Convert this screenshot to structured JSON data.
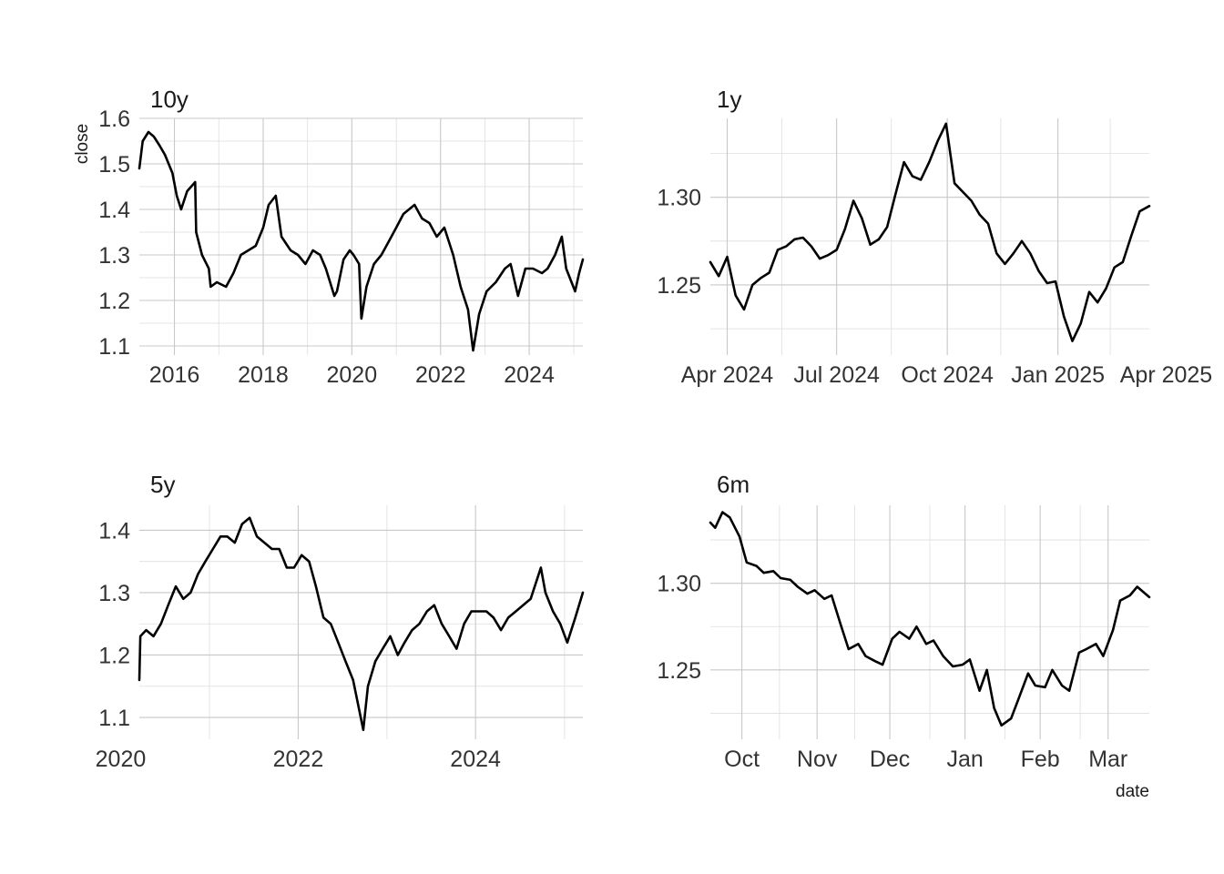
{
  "figure": {
    "ylabel": "close",
    "xlabel": "date",
    "line_color": "#000000",
    "grid_color": "#c8c8c8"
  },
  "chart_data": [
    {
      "type": "line",
      "title": "10y",
      "ylabel": "close",
      "xlabel": "",
      "xlim": [
        "2015-03-18",
        "2025-03-18"
      ],
      "ylim": [
        1.08,
        1.6
      ],
      "xticks": [
        {
          "value": "2016-01-01",
          "label": "2016"
        },
        {
          "value": "2018-01-01",
          "label": "2018"
        },
        {
          "value": "2020-01-01",
          "label": "2020"
        },
        {
          "value": "2022-01-01",
          "label": "2022"
        },
        {
          "value": "2024-01-01",
          "label": "2024"
        }
      ],
      "yticks": [
        {
          "value": 1.1,
          "label": "1.1"
        },
        {
          "value": 1.2,
          "label": "1.2"
        },
        {
          "value": 1.3,
          "label": "1.3"
        },
        {
          "value": 1.4,
          "label": "1.4"
        },
        {
          "value": 1.5,
          "label": "1.5"
        },
        {
          "value": 1.6,
          "label": "1.6"
        }
      ],
      "series": [
        {
          "x": [
            "2015-03-18",
            "2015-04-15",
            "2015-06-01",
            "2015-07-15",
            "2015-09-01",
            "2015-10-15",
            "2015-12-15",
            "2016-01-20",
            "2016-02-25",
            "2016-04-15",
            "2016-06-20",
            "2016-06-28",
            "2016-08-15",
            "2016-10-10",
            "2016-10-25",
            "2016-12-15",
            "2017-03-01",
            "2017-05-01",
            "2017-07-01",
            "2017-09-01",
            "2017-11-01",
            "2018-01-01",
            "2018-02-15",
            "2018-04-15",
            "2018-06-01",
            "2018-08-15",
            "2018-10-15",
            "2018-12-15",
            "2019-02-15",
            "2019-04-15",
            "2019-06-01",
            "2019-08-10",
            "2019-09-01",
            "2019-10-25",
            "2019-12-15",
            "2020-01-15",
            "2020-03-01",
            "2020-03-20",
            "2020-05-01",
            "2020-07-01",
            "2020-09-01",
            "2020-11-01",
            "2021-01-01",
            "2021-03-01",
            "2021-06-01",
            "2021-08-01",
            "2021-10-01",
            "2021-12-01",
            "2022-02-01",
            "2022-04-15",
            "2022-06-15",
            "2022-08-15",
            "2022-09-26",
            "2022-11-15",
            "2023-01-15",
            "2023-04-01",
            "2023-06-15",
            "2023-08-01",
            "2023-10-01",
            "2023-12-01",
            "2024-02-01",
            "2024-04-15",
            "2024-06-01",
            "2024-08-01",
            "2024-09-26",
            "2024-11-01",
            "2025-01-13",
            "2025-02-15",
            "2025-03-18"
          ],
          "y": [
            1.49,
            1.55,
            1.57,
            1.56,
            1.54,
            1.52,
            1.48,
            1.43,
            1.4,
            1.44,
            1.46,
            1.35,
            1.3,
            1.27,
            1.23,
            1.24,
            1.23,
            1.26,
            1.3,
            1.31,
            1.32,
            1.36,
            1.41,
            1.43,
            1.34,
            1.31,
            1.3,
            1.28,
            1.31,
            1.3,
            1.27,
            1.21,
            1.22,
            1.29,
            1.31,
            1.3,
            1.28,
            1.16,
            1.23,
            1.28,
            1.3,
            1.33,
            1.36,
            1.39,
            1.41,
            1.38,
            1.37,
            1.34,
            1.36,
            1.3,
            1.23,
            1.18,
            1.09,
            1.17,
            1.22,
            1.24,
            1.27,
            1.28,
            1.21,
            1.27,
            1.27,
            1.26,
            1.27,
            1.3,
            1.34,
            1.27,
            1.22,
            1.26,
            1.29
          ]
        }
      ]
    },
    {
      "type": "line",
      "title": "1y",
      "ylabel": "",
      "xlabel": "",
      "xlim": [
        "2024-03-18",
        "2025-03-18"
      ],
      "ylim": [
        1.21,
        1.345
      ],
      "xticks": [
        {
          "value": "2024-04-01",
          "label": "Apr 2024"
        },
        {
          "value": "2024-07-01",
          "label": "Jul 2024"
        },
        {
          "value": "2024-10-01",
          "label": "Oct 2024"
        },
        {
          "value": "2025-01-01",
          "label": "Jan 2025"
        },
        {
          "value": "2025-04-01",
          "label": "Apr 2025"
        }
      ],
      "yticks": [
        {
          "value": 1.25,
          "label": "1.25"
        },
        {
          "value": 1.3,
          "label": "1.30"
        }
      ],
      "series": [
        {
          "x": [
            "2024-03-18",
            "2024-03-25",
            "2024-04-01",
            "2024-04-08",
            "2024-04-15",
            "2024-04-22",
            "2024-04-29",
            "2024-05-06",
            "2024-05-13",
            "2024-05-20",
            "2024-05-27",
            "2024-06-03",
            "2024-06-10",
            "2024-06-17",
            "2024-06-24",
            "2024-07-01",
            "2024-07-08",
            "2024-07-15",
            "2024-07-22",
            "2024-07-29",
            "2024-08-05",
            "2024-08-12",
            "2024-08-19",
            "2024-08-26",
            "2024-09-02",
            "2024-09-09",
            "2024-09-16",
            "2024-09-23",
            "2024-09-30",
            "2024-10-07",
            "2024-10-14",
            "2024-10-21",
            "2024-10-28",
            "2024-11-04",
            "2024-11-11",
            "2024-11-18",
            "2024-11-25",
            "2024-12-02",
            "2024-12-09",
            "2024-12-16",
            "2024-12-23",
            "2024-12-30",
            "2025-01-06",
            "2025-01-13",
            "2025-01-20",
            "2025-01-27",
            "2025-02-03",
            "2025-02-10",
            "2025-02-17",
            "2025-02-24",
            "2025-03-03",
            "2025-03-10",
            "2025-03-18"
          ],
          "y": [
            1.263,
            1.255,
            1.266,
            1.244,
            1.236,
            1.25,
            1.254,
            1.257,
            1.27,
            1.272,
            1.276,
            1.277,
            1.272,
            1.265,
            1.267,
            1.27,
            1.282,
            1.298,
            1.288,
            1.273,
            1.276,
            1.283,
            1.302,
            1.32,
            1.312,
            1.31,
            1.32,
            1.332,
            1.342,
            1.308,
            1.303,
            1.298,
            1.29,
            1.285,
            1.268,
            1.262,
            1.268,
            1.275,
            1.268,
            1.258,
            1.251,
            1.252,
            1.232,
            1.218,
            1.228,
            1.246,
            1.24,
            1.248,
            1.26,
            1.263,
            1.278,
            1.292,
            1.295
          ]
        }
      ]
    },
    {
      "type": "line",
      "title": "5y",
      "ylabel": "",
      "xlabel": "",
      "xlim": [
        "2020-03-18",
        "2025-03-18"
      ],
      "ylim": [
        1.065,
        1.44
      ],
      "xticks": [
        {
          "value": "2020-01-01",
          "label": "2020"
        },
        {
          "value": "2022-01-01",
          "label": "2022"
        },
        {
          "value": "2024-01-01",
          "label": "2024"
        }
      ],
      "yticks": [
        {
          "value": 1.1,
          "label": "1.1"
        },
        {
          "value": 1.2,
          "label": "1.2"
        },
        {
          "value": 1.3,
          "label": "1.3"
        },
        {
          "value": 1.4,
          "label": "1.4"
        }
      ],
      "series": [
        {
          "x": [
            "2020-03-18",
            "2020-03-22",
            "2020-04-15",
            "2020-05-15",
            "2020-06-15",
            "2020-07-15",
            "2020-08-15",
            "2020-09-15",
            "2020-10-15",
            "2020-11-15",
            "2020-12-15",
            "2021-01-15",
            "2021-02-15",
            "2021-03-15",
            "2021-04-15",
            "2021-05-15",
            "2021-06-15",
            "2021-07-15",
            "2021-08-15",
            "2021-09-15",
            "2021-10-15",
            "2021-11-15",
            "2021-12-15",
            "2022-01-15",
            "2022-02-15",
            "2022-03-15",
            "2022-04-15",
            "2022-05-15",
            "2022-06-15",
            "2022-07-15",
            "2022-08-15",
            "2022-09-26",
            "2022-10-15",
            "2022-11-15",
            "2022-12-15",
            "2023-01-15",
            "2023-02-15",
            "2023-03-15",
            "2023-04-15",
            "2023-05-15",
            "2023-06-15",
            "2023-07-15",
            "2023-08-15",
            "2023-09-15",
            "2023-10-15",
            "2023-11-15",
            "2023-12-15",
            "2024-01-15",
            "2024-02-15",
            "2024-03-15",
            "2024-04-15",
            "2024-05-15",
            "2024-06-15",
            "2024-07-15",
            "2024-08-15",
            "2024-09-26",
            "2024-10-15",
            "2024-11-15",
            "2024-12-15",
            "2025-01-13",
            "2025-02-15",
            "2025-03-18"
          ],
          "y": [
            1.16,
            1.23,
            1.24,
            1.23,
            1.25,
            1.28,
            1.31,
            1.29,
            1.3,
            1.33,
            1.35,
            1.37,
            1.39,
            1.39,
            1.38,
            1.41,
            1.42,
            1.39,
            1.38,
            1.37,
            1.37,
            1.34,
            1.34,
            1.36,
            1.35,
            1.31,
            1.26,
            1.25,
            1.22,
            1.19,
            1.16,
            1.08,
            1.15,
            1.19,
            1.21,
            1.23,
            1.2,
            1.22,
            1.24,
            1.25,
            1.27,
            1.28,
            1.25,
            1.23,
            1.21,
            1.25,
            1.27,
            1.27,
            1.27,
            1.26,
            1.24,
            1.26,
            1.27,
            1.28,
            1.29,
            1.34,
            1.3,
            1.27,
            1.25,
            1.22,
            1.26,
            1.3
          ]
        }
      ]
    },
    {
      "type": "line",
      "title": "6m",
      "ylabel": "",
      "xlabel": "date",
      "xlim": [
        "2024-09-18",
        "2025-03-18"
      ],
      "ylim": [
        1.21,
        1.345
      ],
      "xticks": [
        {
          "value": "2024-10-01",
          "label": "Oct"
        },
        {
          "value": "2024-11-01",
          "label": "Nov"
        },
        {
          "value": "2024-12-01",
          "label": "Dec"
        },
        {
          "value": "2025-01-01",
          "label": "Jan"
        },
        {
          "value": "2025-02-01",
          "label": "Feb"
        },
        {
          "value": "2025-03-01",
          "label": "Mar"
        }
      ],
      "yticks": [
        {
          "value": 1.25,
          "label": "1.25"
        },
        {
          "value": 1.3,
          "label": "1.30"
        }
      ],
      "series": [
        {
          "x": [
            "2024-09-18",
            "2024-09-20",
            "2024-09-23",
            "2024-09-26",
            "2024-09-30",
            "2024-10-03",
            "2024-10-07",
            "2024-10-10",
            "2024-10-14",
            "2024-10-17",
            "2024-10-21",
            "2024-10-24",
            "2024-10-28",
            "2024-10-31",
            "2024-11-04",
            "2024-11-07",
            "2024-11-11",
            "2024-11-14",
            "2024-11-18",
            "2024-11-21",
            "2024-11-25",
            "2024-11-28",
            "2024-12-02",
            "2024-12-05",
            "2024-12-09",
            "2024-12-12",
            "2024-12-16",
            "2024-12-19",
            "2024-12-23",
            "2024-12-27",
            "2024-12-31",
            "2025-01-03",
            "2025-01-07",
            "2025-01-10",
            "2025-01-13",
            "2025-01-16",
            "2025-01-20",
            "2025-01-23",
            "2025-01-27",
            "2025-01-30",
            "2025-02-03",
            "2025-02-06",
            "2025-02-10",
            "2025-02-13",
            "2025-02-17",
            "2025-02-20",
            "2025-02-24",
            "2025-02-27",
            "2025-03-03",
            "2025-03-06",
            "2025-03-10",
            "2025-03-13",
            "2025-03-18"
          ],
          "y": [
            1.335,
            1.332,
            1.341,
            1.338,
            1.327,
            1.312,
            1.31,
            1.306,
            1.307,
            1.303,
            1.302,
            1.298,
            1.294,
            1.296,
            1.291,
            1.293,
            1.275,
            1.262,
            1.265,
            1.258,
            1.255,
            1.253,
            1.268,
            1.272,
            1.268,
            1.275,
            1.265,
            1.267,
            1.258,
            1.252,
            1.253,
            1.256,
            1.238,
            1.25,
            1.228,
            1.218,
            1.222,
            1.233,
            1.248,
            1.241,
            1.24,
            1.25,
            1.241,
            1.238,
            1.26,
            1.262,
            1.265,
            1.258,
            1.273,
            1.29,
            1.293,
            1.298,
            1.292
          ]
        }
      ]
    }
  ]
}
